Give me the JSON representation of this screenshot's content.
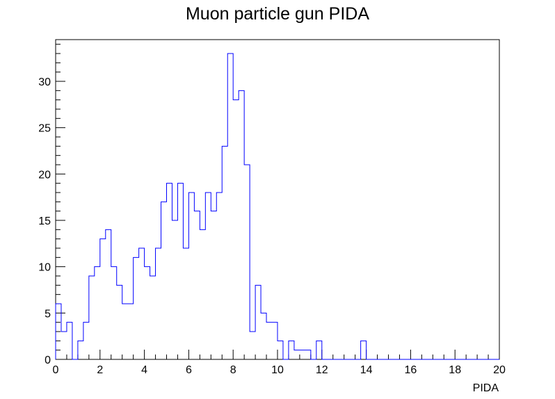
{
  "chart_data": {
    "type": "bar",
    "title": "Muon particle gun PIDA",
    "xlabel": "PIDA",
    "ylabel": "",
    "xlim": [
      0,
      20
    ],
    "ylim": [
      0,
      34.5
    ],
    "bin_width": 0.25,
    "x_ticks": [
      "0",
      "2",
      "4",
      "6",
      "8",
      "10",
      "12",
      "14",
      "16",
      "18",
      "20"
    ],
    "y_ticks": [
      "0",
      "5",
      "10",
      "15",
      "20",
      "25",
      "30"
    ],
    "line_color": "#0000ff",
    "grid": false,
    "series": [
      {
        "values": [
          6,
          3,
          4,
          0,
          2,
          4,
          9,
          10,
          13,
          14,
          10,
          8,
          6,
          6,
          11,
          12,
          10,
          9,
          12,
          17,
          19,
          15,
          19,
          12,
          18,
          16,
          14,
          18,
          16,
          18,
          23,
          33,
          28,
          29,
          21,
          3,
          8,
          5,
          4,
          4,
          2,
          0,
          2,
          1,
          1,
          1,
          0,
          2,
          0,
          0,
          0,
          0,
          0,
          0,
          0,
          2,
          0,
          0,
          0,
          0,
          0,
          0,
          0,
          0,
          0,
          0,
          0,
          0,
          0,
          0,
          0,
          0,
          0,
          0,
          0,
          0,
          0,
          0,
          0,
          0
        ]
      }
    ]
  }
}
